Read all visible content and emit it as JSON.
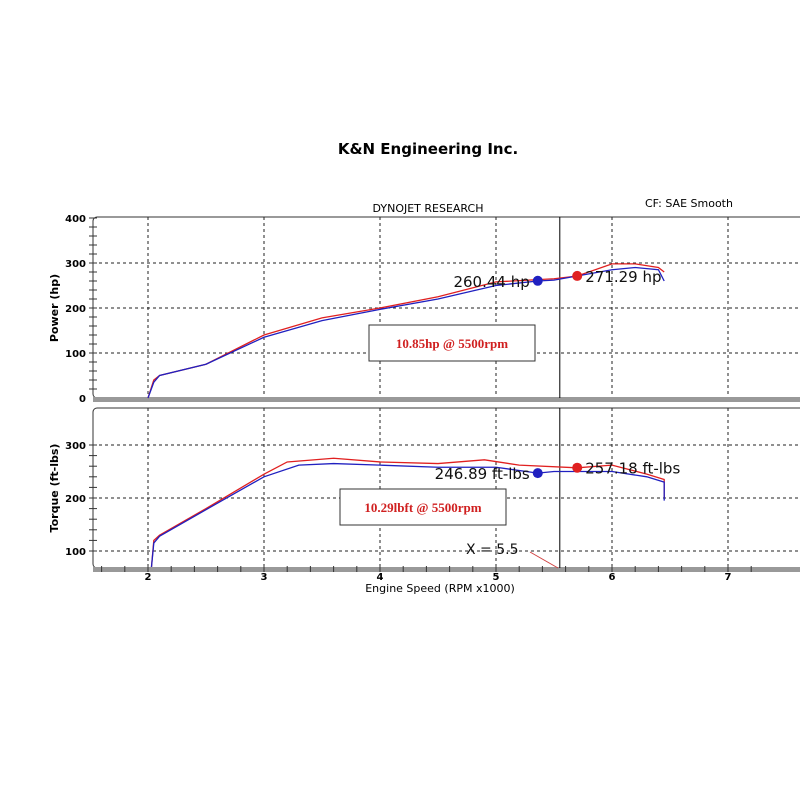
{
  "company_title": "K&N Engineering Inc.",
  "chart_data": [
    {
      "type": "line",
      "header": "DYNOJET RESEARCH",
      "settings_text": "CF: SAE  Smooth",
      "ylabel": "Power (hp)",
      "ylim": [
        0,
        400
      ],
      "xlim": [
        1.5,
        7.3
      ],
      "yticks": [
        "0",
        "100",
        "200",
        "300",
        "400"
      ],
      "grid": true,
      "colors": {
        "after": "#e02020",
        "before": "#2020c0"
      },
      "series": [
        {
          "key": "after",
          "x": [
            2.0,
            2.05,
            2.1,
            2.5,
            3.0,
            3.5,
            4.0,
            4.5,
            5.0,
            5.5,
            5.7,
            6.0,
            6.2,
            6.4,
            6.45
          ],
          "y": [
            0,
            40,
            50,
            75,
            140,
            178,
            200,
            225,
            258,
            265,
            271,
            298,
            298,
            290,
            280
          ]
        },
        {
          "key": "before",
          "x": [
            2.0,
            2.05,
            2.1,
            2.5,
            3.0,
            3.5,
            4.0,
            4.5,
            5.0,
            5.36,
            5.5,
            6.0,
            6.2,
            6.4,
            6.45
          ],
          "y": [
            0,
            35,
            50,
            75,
            135,
            172,
            197,
            220,
            250,
            260,
            262,
            285,
            290,
            285,
            260
          ]
        }
      ],
      "markers": [
        {
          "key": "before",
          "x": 5.36,
          "y": 260.44,
          "label": "260.44 hp"
        },
        {
          "key": "after",
          "x": 5.7,
          "y": 271.29,
          "label": "271.29 hp"
        }
      ],
      "gain_box": "10.85hp @ 5500rpm",
      "cursor_x": 5.55
    },
    {
      "type": "line",
      "ylabel": "Torque (ft-lbs)",
      "xlabel": "Engine Speed (RPM x1000)",
      "ylim": [
        68,
        380
      ],
      "xlim": [
        1.5,
        7.3
      ],
      "yticks": [
        "100",
        "200",
        "300"
      ],
      "xticks": [
        "2",
        "3",
        "4",
        "5",
        "6",
        "7"
      ],
      "grid": true,
      "series": [
        {
          "key": "after",
          "x": [
            2.03,
            2.05,
            2.1,
            2.5,
            3.0,
            3.2,
            3.6,
            4.0,
            4.5,
            4.9,
            5.2,
            5.7,
            6.0,
            6.3,
            6.45,
            6.45
          ],
          "y": [
            70,
            120,
            130,
            180,
            245,
            268,
            275,
            268,
            265,
            272,
            262,
            257,
            262,
            245,
            235,
            200
          ]
        },
        {
          "key": "before",
          "x": [
            2.03,
            2.05,
            2.1,
            2.5,
            3.0,
            3.3,
            3.6,
            4.0,
            4.5,
            5.0,
            5.36,
            5.5,
            6.0,
            6.3,
            6.45,
            6.45
          ],
          "y": [
            70,
            115,
            128,
            178,
            240,
            262,
            265,
            262,
            258,
            258,
            247,
            250,
            250,
            240,
            230,
            195
          ]
        }
      ],
      "markers": [
        {
          "key": "before",
          "x": 5.36,
          "y": 246.89,
          "label": "246.89 ft-lbs"
        },
        {
          "key": "after",
          "x": 5.7,
          "y": 257.18,
          "label": "257.18 ft-lbs"
        }
      ],
      "gain_box": "10.29lbft @ 5500rpm",
      "cursor_label": "X = 5.5",
      "cursor_x": 5.55
    }
  ]
}
